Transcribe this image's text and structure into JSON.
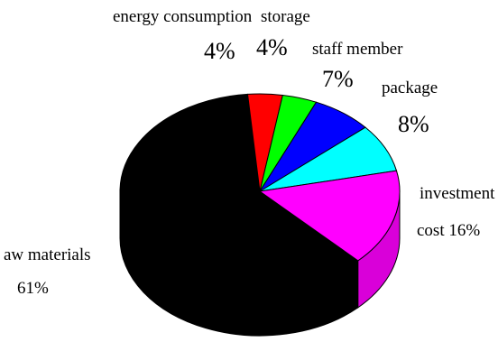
{
  "chart_data": {
    "type": "pie",
    "style": "3d",
    "legend": "none",
    "slices": [
      {
        "label": "aw materials",
        "value": 61,
        "pct_text": "61%",
        "color": "#000000"
      },
      {
        "label": "energy consumption",
        "value": 4,
        "pct_text": "4%",
        "color": "#ff0000"
      },
      {
        "label": "storage",
        "value": 4,
        "pct_text": "4%",
        "color": "#00ff00"
      },
      {
        "label": "staff member",
        "value": 7,
        "pct_text": "7%",
        "color": "#0000ff"
      },
      {
        "label": "package",
        "value": 8,
        "pct_text": "8%",
        "color": "#00ffff"
      },
      {
        "label": "investment cost",
        "label_line1": "investment",
        "label_line2": "cost 16%",
        "value": 16,
        "pct_text": "16%",
        "color": "#ff00ff"
      }
    ]
  }
}
